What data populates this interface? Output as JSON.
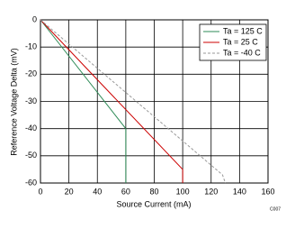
{
  "chart_data": {
    "type": "line",
    "xlabel": "Source Current (mA)",
    "ylabel": "Reference Voltage Delta (mV)",
    "annotation": "C007",
    "series": [
      {
        "name": "Ta = 125 C",
        "color": "#2e8b57",
        "dashed": false,
        "x": [
          0,
          60,
          60
        ],
        "values": [
          0,
          -40,
          -60
        ]
      },
      {
        "name": "Ta = 25 C",
        "color": "#cc0000",
        "dashed": false,
        "x": [
          0,
          100,
          100
        ],
        "values": [
          0,
          -55,
          -60
        ]
      },
      {
        "name": "Ta = -40 C",
        "color": "#999999",
        "dashed": true,
        "x": [
          0,
          128,
          130
        ],
        "values": [
          0,
          -57,
          -60
        ]
      }
    ],
    "xlim": [
      0,
      160
    ],
    "xticks": [
      0,
      20,
      40,
      60,
      80,
      100,
      120,
      140,
      160
    ],
    "ylim": [
      -60,
      0
    ],
    "yticks": [
      0,
      -10,
      -20,
      -30,
      -40,
      -50,
      -60
    ],
    "grid": true,
    "legend": "top-right"
  }
}
